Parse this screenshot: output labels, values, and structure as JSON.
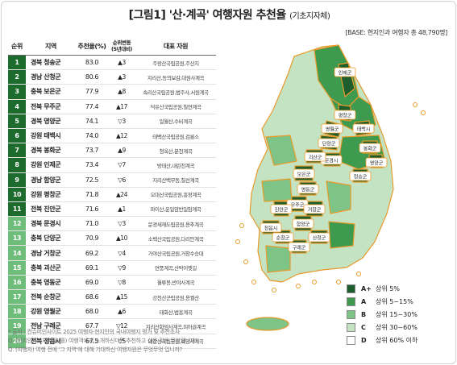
{
  "header": {
    "title": "[그림1] '산·계곡' 여행자원 추천율",
    "subtitle": "(기초지자체)",
    "base": "[BASE: 현지인과 여행자 총 48,790명]"
  },
  "table": {
    "headers": [
      "순위",
      "지역",
      "추천율(%)",
      "순위변동\n(5년대비)",
      "대표 자원"
    ],
    "colors": {
      "top10": "#1e6b2e",
      "rest": "#6fbd7a"
    },
    "rows": [
      {
        "rank": "1",
        "region": "경북 청송군",
        "rate": "83.0",
        "change": "▲3",
        "resource": "주왕산국립공원,주산지"
      },
      {
        "rank": "2",
        "region": "경남 산청군",
        "rate": "80.6",
        "change": "▲3",
        "resource": "지리산,동의보감,대원사계곡"
      },
      {
        "rank": "3",
        "region": "충북 보은군",
        "rate": "77.9",
        "change": "▲8",
        "resource": "속리산국립공원,법주사,서원계곡"
      },
      {
        "rank": "4",
        "region": "전북 무주군",
        "rate": "77.4",
        "change": "▲17",
        "resource": "덕유산국립공원,칠연계곡"
      },
      {
        "rank": "5",
        "region": "경북 영양군",
        "rate": "74.1",
        "change": "▽3",
        "resource": "일월산,수비계곡"
      },
      {
        "rank": "6",
        "region": "강원 태백시",
        "rate": "74.0",
        "change": "▲12",
        "resource": "태백산국립공원,검룡소"
      },
      {
        "rank": "7",
        "region": "경북 봉화군",
        "rate": "73.7",
        "change": "▲9",
        "resource": "청옥산,분천계곡"
      },
      {
        "rank": "8",
        "region": "강원 인제군",
        "rate": "73.4",
        "change": "▽7",
        "resource": "방태산,내린천계곡"
      },
      {
        "rank": "9",
        "region": "경남 함양군",
        "rate": "72.5",
        "change": "▽6",
        "resource": "지리산백무동,칠선계곡"
      },
      {
        "rank": "10",
        "region": "강원 평창군",
        "rate": "71.8",
        "change": "▲24",
        "resource": "오대산국립공원,흥정계곡"
      },
      {
        "rank": "11",
        "region": "전북 진안군",
        "rate": "71.6",
        "change": "▲1",
        "resource": "마이산,운일암반일암계곡"
      },
      {
        "rank": "12",
        "region": "경북 문경시",
        "rate": "71.0",
        "change": "▽3",
        "resource": "문경새재도립공원,용추계곡"
      },
      {
        "rank": "13",
        "region": "충북 단양군",
        "rate": "70.9",
        "change": "▲10",
        "resource": "소백산국립공원,다리안계곡"
      },
      {
        "rank": "14",
        "region": "경남 거창군",
        "rate": "69.2",
        "change": "▽4",
        "resource": "가야산국립공원,거창수승대"
      },
      {
        "rank": "15",
        "region": "충북 괴산군",
        "rate": "69.1",
        "change": "▽9",
        "resource": "연풍계곡,산막이옛길"
      },
      {
        "rank": "16",
        "region": "충북 영동군",
        "rate": "69.0",
        "change": "▽8",
        "resource": "월류봉,반야사계곡"
      },
      {
        "rank": "17",
        "region": "전북 순창군",
        "rate": "68.6",
        "change": "▲15",
        "resource": "강천산군립공원,용궐산"
      },
      {
        "rank": "18",
        "region": "강원 영월군",
        "rate": "68.0",
        "change": "▲6",
        "resource": "태화산,법흥계곡"
      },
      {
        "rank": "19",
        "region": "전남 구례군",
        "rate": "67.7",
        "change": "▽12",
        "resource": "지리산화엄사계곡,피아골계곡"
      },
      {
        "rank": "20",
        "region": "전북 정읍시",
        "rate": "67.5",
        "change": "▽5",
        "resource": "내장산국립공원,백양사계곡"
      }
    ]
  },
  "map": {
    "labels": [
      {
        "text": "인제군",
        "grade": "A+"
      },
      {
        "text": "평창군",
        "grade": "A+"
      },
      {
        "text": "영월군",
        "grade": "A+"
      },
      {
        "text": "태백시",
        "grade": "A+"
      },
      {
        "text": "단양군",
        "grade": "A+"
      },
      {
        "text": "봉화군",
        "grade": "A+"
      },
      {
        "text": "영양군",
        "grade": "A+"
      },
      {
        "text": "문경시",
        "grade": "A+"
      },
      {
        "text": "괴산군",
        "grade": "A+"
      },
      {
        "text": "보은군",
        "grade": "A+"
      },
      {
        "text": "청송군",
        "grade": "A+"
      },
      {
        "text": "영동군",
        "grade": "A+"
      },
      {
        "text": "무주군",
        "grade": "A+"
      },
      {
        "text": "진안군",
        "grade": "A+"
      },
      {
        "text": "거창군",
        "grade": "A+"
      },
      {
        "text": "함양군",
        "grade": "A+"
      },
      {
        "text": "정읍시",
        "grade": "A+"
      },
      {
        "text": "산청군",
        "grade": "A+"
      },
      {
        "text": "순창군",
        "grade": "A+"
      },
      {
        "text": "구례군",
        "grade": "A+"
      }
    ]
  },
  "legend": {
    "items": [
      {
        "code": "A+",
        "label": "상위 5%",
        "color": "#1e5e2c"
      },
      {
        "code": "A",
        "label": "상위 5~15%",
        "color": "#3e9a4f"
      },
      {
        "code": "B",
        "label": "상위 15~30%",
        "color": "#7fc487"
      },
      {
        "code": "C",
        "label": "상위 30~60%",
        "color": "#c3e3c3"
      },
      {
        "code": "D",
        "label": "상위 60% 이하",
        "color": "#ffffff"
      }
    ]
  },
  "footnotes": [
    "* 출처 : 컨슈머인사이트 2025 여행자·현지인의 국내여행지 평가 및 추천조사",
    "Q. (현지인)'그 지역'을(를) 여행객에게 소개하신다면 추천하고 싶은 것은 무엇입니까?",
    "Q. (여행자) 여행 전에 '그 지역'에 대해 기대하신 여행자원은 무엇무엇 입니까?"
  ],
  "chart_data": {
    "type": "table",
    "title": "[그림1] '산·계곡' 여행자원 추천율",
    "subtitle": "(기초지자체)",
    "columns": [
      "순위",
      "지역",
      "추천율(%)",
      "순위변동(5년대비)",
      "대표 자원"
    ],
    "categories": [
      "경북 청송군",
      "경남 산청군",
      "충북 보은군",
      "전북 무주군",
      "경북 영양군",
      "강원 태백시",
      "경북 봉화군",
      "강원 인제군",
      "경남 함양군",
      "강원 평창군",
      "전북 진안군",
      "경북 문경시",
      "충북 단양군",
      "경남 거창군",
      "충북 괴산군",
      "충북 영동군",
      "전북 순창군",
      "강원 영월군",
      "전남 구례군",
      "전북 정읍시"
    ],
    "values": [
      83.0,
      80.6,
      77.9,
      77.4,
      74.1,
      74.0,
      73.7,
      73.4,
      72.5,
      71.8,
      71.6,
      71.0,
      70.9,
      69.2,
      69.1,
      69.0,
      68.6,
      68.0,
      67.7,
      67.5
    ],
    "legend": [
      "A+ 상위 5%",
      "A 상위 5~15%",
      "B 상위 15~30%",
      "C 상위 30~60%",
      "D 상위 60% 이하"
    ],
    "legend_position": "bottom-right"
  }
}
